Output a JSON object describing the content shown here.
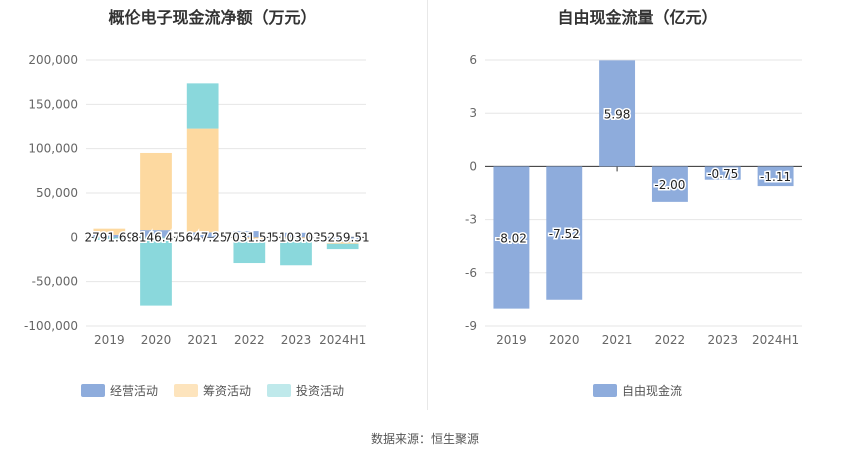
{
  "source_label": "数据来源：恒生聚源",
  "chart_data": [
    {
      "type": "bar",
      "stacked": true,
      "title": "概伦电子现金流净额（万元）",
      "categories": [
        "2019",
        "2020",
        "2021",
        "2022",
        "2023",
        "2024H1"
      ],
      "ylim": [
        -100000,
        200000
      ],
      "yticks": [
        200000,
        150000,
        100000,
        50000,
        0,
        -50000,
        -100000
      ],
      "ytick_labels": [
        "200,000",
        "150,000",
        "100,000",
        "50,000",
        "0",
        "-50,000",
        "-100,000"
      ],
      "grid": true,
      "legend_position": "bottom",
      "series": [
        {
          "name": "经营活动",
          "color": "#8eacdc",
          "values": [
            2791.69,
            8146.47,
            5647.25,
            7031.51,
            5103.03,
            -5259.51
          ]
        },
        {
          "name": "筹资活动",
          "color": "#fdd9a0",
          "values": [
            7000,
            87000,
            117000,
            -2000,
            -1500,
            -2000
          ]
        },
        {
          "name": "投资活动",
          "color": "#8ad8dc",
          "values": [
            -3000,
            -77000,
            51000,
            -27000,
            -30000,
            -6000
          ]
        }
      ],
      "data_labels": [
        "2791.69",
        "8146.47",
        "5647.25",
        "7031.51",
        "5103.03",
        "-5259.51"
      ]
    },
    {
      "type": "bar",
      "title": "自由现金流量（亿元）",
      "categories": [
        "2019",
        "2020",
        "2021",
        "2022",
        "2023",
        "2024H1"
      ],
      "ylim": [
        -9,
        6
      ],
      "yticks": [
        6,
        3,
        0,
        -3,
        -6,
        -9
      ],
      "ytick_labels": [
        "6",
        "3",
        "0",
        "-3",
        "-6",
        "-9"
      ],
      "grid": true,
      "legend_position": "bottom",
      "series": [
        {
          "name": "自由现金流",
          "color": "#8eacdc",
          "values": [
            -8.02,
            -7.52,
            5.98,
            -2.0,
            -0.75,
            -1.11
          ]
        }
      ],
      "data_labels": [
        "-8.02",
        "-7.52",
        "5.98",
        "-2.00",
        "-0.75",
        "-1.11"
      ]
    }
  ]
}
